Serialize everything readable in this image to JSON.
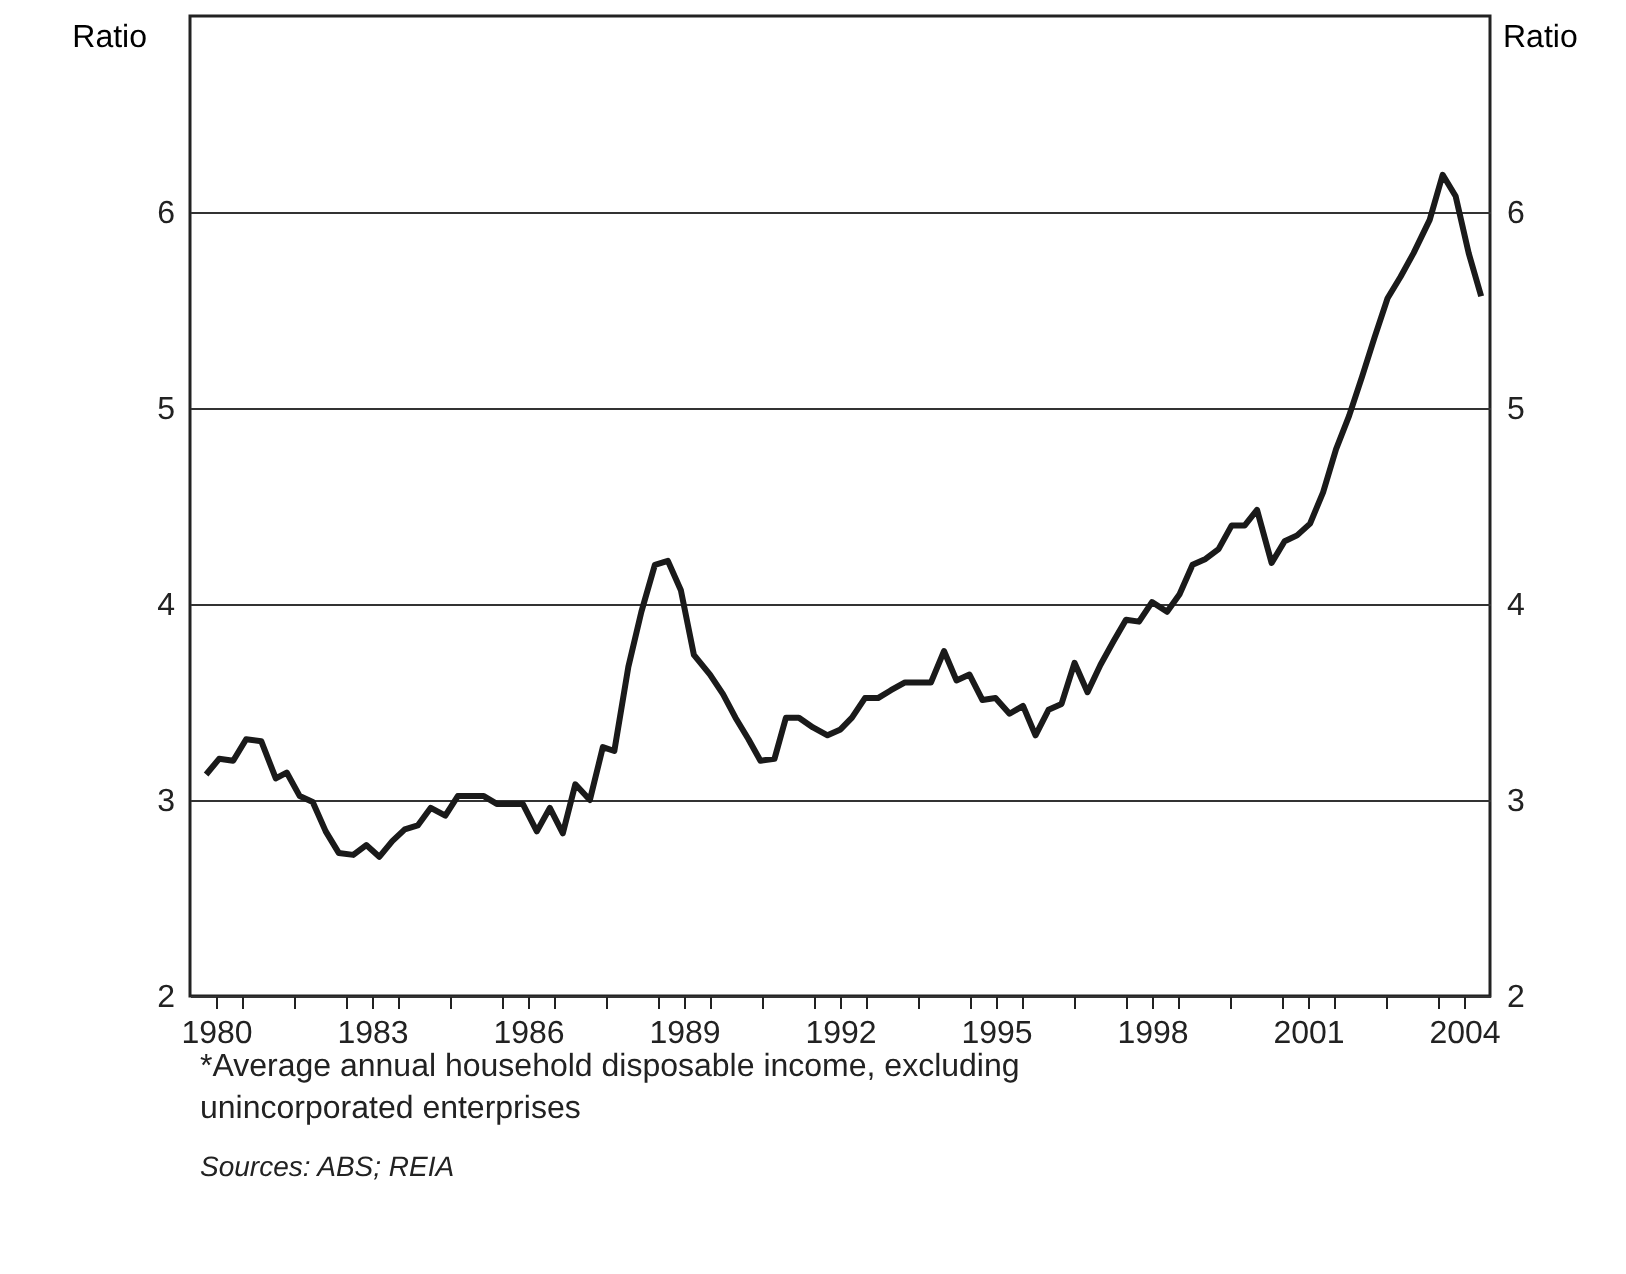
{
  "chart_data": {
    "type": "line",
    "ylabel": "Ratio",
    "y2label": "Ratio",
    "annotations": [
      "*Average annual household disposable income, excluding unincorporated  enterprises",
      "Sources: ABS; REIA"
    ],
    "xlim": [
      1980,
      2005
    ],
    "xticks": [
      {
        "value": 1980.5,
        "label": "1980"
      },
      {
        "value": 1981,
        "label": null
      },
      {
        "value": 1982,
        "label": null
      },
      {
        "value": 1983,
        "label": null
      },
      {
        "value": 1983.5,
        "label": "1983"
      },
      {
        "value": 1984,
        "label": null
      },
      {
        "value": 1985,
        "label": null
      },
      {
        "value": 1986,
        "label": null
      },
      {
        "value": 1986.5,
        "label": "1986"
      },
      {
        "value": 1987,
        "label": null
      },
      {
        "value": 1988,
        "label": null
      },
      {
        "value": 1989,
        "label": null
      },
      {
        "value": 1989.5,
        "label": "1989"
      },
      {
        "value": 1990,
        "label": null
      },
      {
        "value": 1991,
        "label": null
      },
      {
        "value": 1992,
        "label": null
      },
      {
        "value": 1992.5,
        "label": "1992"
      },
      {
        "value": 1993,
        "label": null
      },
      {
        "value": 1994,
        "label": null
      },
      {
        "value": 1995,
        "label": null
      },
      {
        "value": 1995.5,
        "label": "1995"
      },
      {
        "value": 1996,
        "label": null
      },
      {
        "value": 1997,
        "label": null
      },
      {
        "value": 1998,
        "label": null
      },
      {
        "value": 1998.5,
        "label": "1998"
      },
      {
        "value": 1999,
        "label": null
      },
      {
        "value": 2000,
        "label": null
      },
      {
        "value": 2001,
        "label": null
      },
      {
        "value": 2001.5,
        "label": "2001"
      },
      {
        "value": 2002,
        "label": null
      },
      {
        "value": 2003,
        "label": null
      },
      {
        "value": 2004,
        "label": null
      },
      {
        "value": 2004.5,
        "label": "2004"
      }
    ],
    "ylim": [
      2,
      7
    ],
    "yticks": [
      2,
      3,
      4,
      5,
      6
    ],
    "y2lim": [
      2,
      7
    ],
    "y2ticks": [
      2,
      3,
      4,
      5,
      6
    ],
    "grid": "y",
    "line_style": "solid",
    "series": [
      {
        "color": "#1a1a1a",
        "x": [
          1980.31,
          1980.56,
          1980.83,
          1981.08,
          1981.37,
          1981.65,
          1981.86,
          1982.11,
          1982.36,
          1982.61,
          1982.86,
          1983.14,
          1983.39,
          1983.64,
          1983.89,
          1984.13,
          1984.38,
          1984.63,
          1984.91,
          1985.15,
          1985.4,
          1985.65,
          1985.9,
          1986.15,
          1986.4,
          1986.67,
          1986.92,
          1987.17,
          1987.41,
          1987.69,
          1987.94,
          1988.16,
          1988.43,
          1988.68,
          1988.94,
          1989.19,
          1989.44,
          1989.69,
          1990,
          1990.25,
          1990.49,
          1990.74,
          1990.97,
          1991.24,
          1991.46,
          1991.71,
          1991.98,
          1992.26,
          1992.51,
          1992.73,
          1992.98,
          1993.23,
          1993.48,
          1993.75,
          1994,
          1994.25,
          1994.5,
          1994.74,
          1994.99,
          1995.24,
          1995.49,
          1995.76,
          1996.02,
          1996.26,
          1996.51,
          1996.76,
          1997.01,
          1997.26,
          1997.51,
          1997.76,
          1998,
          1998.25,
          1998.5,
          1998.79,
          1999.03,
          1999.28,
          1999.53,
          1999.78,
          2000.03,
          2000.28,
          2000.52,
          2000.8,
          2001.05,
          2001.29,
          2001.54,
          2001.79,
          2002.04,
          2002.29,
          2002.54,
          2002.78,
          2003.03,
          2003.28,
          2003.53,
          2003.84,
          2004.09,
          2004.34,
          2004.59,
          2004.83
        ],
        "values": [
          3.13,
          3.21,
          3.2,
          3.31,
          3.3,
          3.11,
          3.14,
          3.02,
          2.99,
          2.84,
          2.73,
          2.72,
          2.77,
          2.71,
          2.79,
          2.85,
          2.87,
          2.96,
          2.92,
          3.02,
          3.02,
          3.02,
          2.98,
          2.98,
          2.98,
          2.84,
          2.96,
          2.83,
          3.08,
          3,
          3.27,
          3.25,
          3.68,
          3.96,
          4.2,
          4.22,
          4.07,
          3.74,
          3.64,
          3.54,
          3.42,
          3.31,
          3.2,
          3.21,
          3.42,
          3.42,
          3.37,
          3.33,
          3.36,
          3.42,
          3.52,
          3.52,
          3.56,
          3.6,
          3.6,
          3.6,
          3.76,
          3.61,
          3.64,
          3.51,
          3.52,
          3.44,
          3.48,
          3.33,
          3.46,
          3.49,
          3.7,
          3.55,
          3.69,
          3.81,
          3.92,
          3.91,
          4.01,
          3.96,
          4.05,
          4.2,
          4.23,
          4.28,
          4.4,
          4.4,
          4.48,
          4.21,
          4.32,
          4.35,
          4.41,
          4.57,
          4.79,
          4.96,
          5.16,
          5.36,
          5.56,
          5.67,
          5.79,
          5.96,
          6.19,
          6.08,
          5.79,
          5.57
        ]
      }
    ]
  }
}
